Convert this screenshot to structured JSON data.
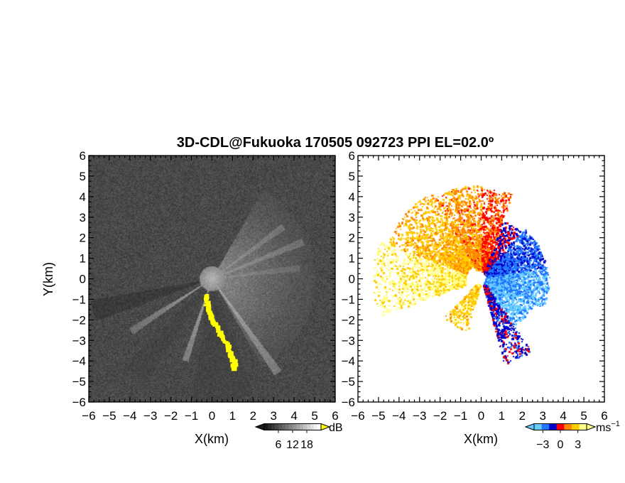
{
  "figure": {
    "title": "3D-CDL@Fukuoka 170505 092723 PPI EL=02.0º"
  },
  "chart_data": [
    {
      "type": "heatmap",
      "panel": "left",
      "quantity": "intensity (grayscale)",
      "xlabel": "X(km)",
      "ylabel": "Y(km)",
      "xlim": [
        -6,
        6
      ],
      "ylim": [
        -6,
        6
      ],
      "x_ticks": [
        "−6",
        "−5",
        "−4",
        "−3",
        "−2",
        "−1",
        "0",
        "1",
        "2",
        "3",
        "4",
        "5",
        "6"
      ],
      "y_ticks": [
        "6",
        "5",
        "4",
        "3",
        "2",
        "1",
        "0",
        "−1",
        "−2",
        "−3",
        "−4",
        "−5",
        "−6"
      ],
      "colorbar": {
        "unit": "dB",
        "tick_labels": [
          "6",
          "12",
          "18"
        ],
        "tick_values": [
          6,
          12,
          18
        ],
        "range": [
          0,
          24
        ],
        "colormap": "gray",
        "overflow_color": "#ffff00"
      },
      "features": [
        {
          "kind": "bright sector",
          "az_from_deg": -60,
          "az_to_deg": 60,
          "max_range_km": 5,
          "level_db": 10
        },
        {
          "kind": "bright ray",
          "az_deg": -55,
          "max_range_km": 5.6,
          "level_db": 14
        },
        {
          "kind": "bright ray",
          "az_deg": -108,
          "max_range_km": 4.2,
          "level_db": 13
        },
        {
          "kind": "bright ray",
          "az_deg": -147,
          "max_range_km": 4.7,
          "level_db": 12
        },
        {
          "kind": "bright ray",
          "az_deg": 22,
          "max_range_km": 4.8,
          "level_db": 12
        },
        {
          "kind": "bright ray",
          "az_deg": 7,
          "max_range_km": 4.3,
          "level_db": 11
        },
        {
          "kind": "bright ray",
          "az_deg": 36,
          "max_range_km": 4.3,
          "level_db": 12
        },
        {
          "kind": "dark sector",
          "az_from_deg": -100,
          "az_to_deg": -70,
          "max_range_km": 6,
          "level_db": 3
        },
        {
          "kind": "dark sector",
          "az_from_deg": -135,
          "az_to_deg": -122,
          "max_range_km": 6,
          "level_db": 3
        },
        {
          "kind": "dark wedge",
          "az_from_deg": -170,
          "az_to_deg": -160,
          "max_range_km": 6,
          "level_db": 2
        }
      ],
      "strong_echo": [
        [
          -0.3,
          -0.8
        ],
        [
          -0.2,
          -1.4
        ],
        [
          0.1,
          -2.1
        ],
        [
          0.4,
          -2.7
        ],
        [
          0.7,
          -3.1
        ],
        [
          0.9,
          -3.6
        ],
        [
          1.1,
          -4.1
        ],
        [
          1.1,
          -4.4
        ]
      ]
    },
    {
      "type": "scatter",
      "panel": "right",
      "quantity": "radial velocity",
      "xlabel": "X(km)",
      "ylabel": "",
      "xlim": [
        -6,
        6
      ],
      "ylim": [
        -6,
        6
      ],
      "x_ticks": [
        "−6",
        "−5",
        "−4",
        "−3",
        "−2",
        "−1",
        "0",
        "1",
        "2",
        "3",
        "4",
        "5",
        "6"
      ],
      "y_ticks": [
        "6",
        "5",
        "4",
        "3",
        "2",
        "1",
        "0",
        "−1",
        "−2",
        "−3",
        "−4",
        "−5",
        "−6"
      ],
      "colorbar": {
        "unit": "ms",
        "unit_exponent": "−1",
        "tick_labels": [
          "−3",
          "0",
          "3"
        ],
        "tick_values": [
          -3,
          0,
          3
        ],
        "range": [
          -4.5,
          4.5
        ],
        "colors": [
          "#66ccff",
          "#2277ff",
          "#0000cc",
          "#ff0000",
          "#ff8800",
          "#ffcc00",
          "#ffff88"
        ]
      },
      "regions": [
        {
          "az_from_deg": 250,
          "az_to_deg": 290,
          "range_km": [
            0.8,
            5.3
          ],
          "velocity": 3.5,
          "density": 0.45
        },
        {
          "az_from_deg": 290,
          "az_to_deg": 330,
          "range_km": [
            0.8,
            4.9
          ],
          "velocity": 2.2,
          "density": 0.55
        },
        {
          "az_from_deg": 330,
          "az_to_deg": 360,
          "range_km": [
            0.5,
            4.6
          ],
          "velocity": 1.4,
          "density": 0.65
        },
        {
          "az_from_deg": 0,
          "az_to_deg": 20,
          "range_km": [
            0.4,
            4.4
          ],
          "velocity": 0.5,
          "density": 0.6
        },
        {
          "az_from_deg": 20,
          "az_to_deg": 40,
          "range_km": [
            0.3,
            3.0
          ],
          "velocity": -0.6,
          "density": 0.6
        },
        {
          "az_from_deg": 40,
          "az_to_deg": 80,
          "range_km": [
            0.3,
            3.2
          ],
          "velocity": -2.2,
          "density": 0.75
        },
        {
          "az_from_deg": 80,
          "az_to_deg": 115,
          "range_km": [
            0.2,
            3.3
          ],
          "velocity": -3.2,
          "density": 0.75
        },
        {
          "az_from_deg": 115,
          "az_to_deg": 145,
          "range_km": [
            0.2,
            2.8
          ],
          "velocity": -3.6,
          "density": 0.55
        },
        {
          "az_from_deg": 145,
          "az_to_deg": 165,
          "range_km": [
            0.3,
            4.3
          ],
          "velocity": -1.2,
          "density": 0.55
        },
        {
          "az_from_deg": 195,
          "az_to_deg": 225,
          "range_km": [
            0.3,
            2.6
          ],
          "velocity": 2.6,
          "density": 0.4
        }
      ]
    }
  ]
}
